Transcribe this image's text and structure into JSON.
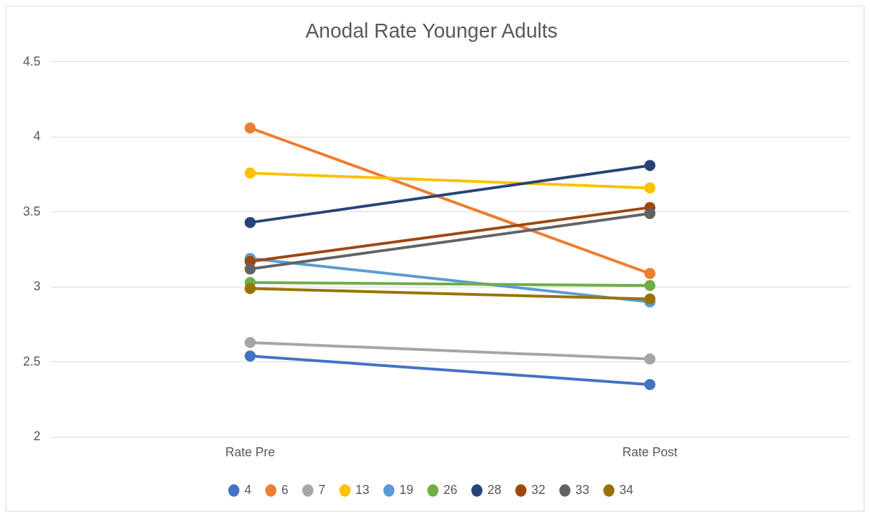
{
  "chart_data": {
    "type": "line",
    "title": "Anodal Rate Younger Adults",
    "categories": [
      "Rate Pre",
      "Rate Post"
    ],
    "series": [
      {
        "name": "4",
        "color": "#4472c4",
        "values": [
          2.54,
          2.35
        ]
      },
      {
        "name": "6",
        "color": "#ed7d31",
        "values": [
          4.06,
          3.09
        ]
      },
      {
        "name": "7",
        "color": "#a5a5a5",
        "values": [
          2.63,
          2.52
        ]
      },
      {
        "name": "13",
        "color": "#ffc000",
        "values": [
          3.76,
          3.66
        ]
      },
      {
        "name": "19",
        "color": "#5b9bd5",
        "values": [
          3.19,
          2.9
        ]
      },
      {
        "name": "26",
        "color": "#70ad47",
        "values": [
          3.03,
          3.01
        ]
      },
      {
        "name": "28",
        "color": "#264478",
        "values": [
          3.43,
          3.81
        ]
      },
      {
        "name": "32",
        "color": "#9e480e",
        "values": [
          3.17,
          3.53
        ]
      },
      {
        "name": "33",
        "color": "#636363",
        "values": [
          3.12,
          3.49
        ]
      },
      {
        "name": "34",
        "color": "#997300",
        "values": [
          2.99,
          2.92
        ]
      }
    ],
    "ylim": [
      2,
      4.5
    ],
    "yticks": [
      2,
      2.5,
      3,
      3.5,
      4,
      4.5
    ],
    "grid": "y",
    "legend": "bottom",
    "marker": "circle",
    "line_style": "solid"
  }
}
